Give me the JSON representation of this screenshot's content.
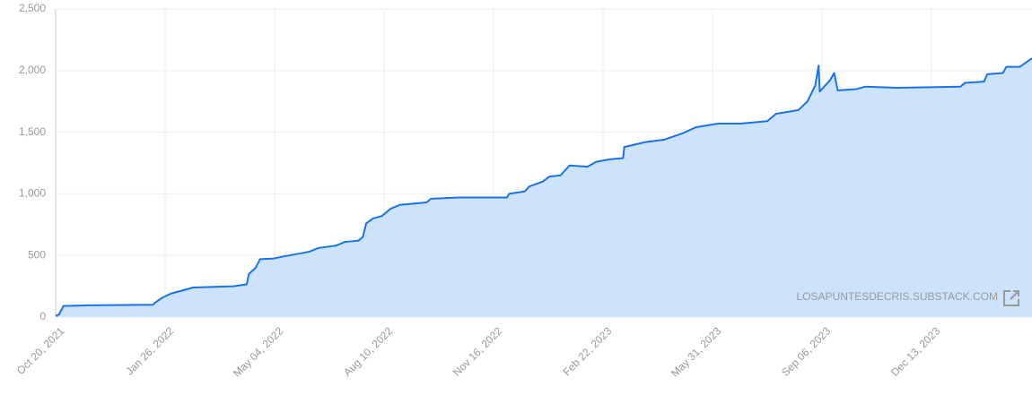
{
  "chart_data": {
    "type": "area",
    "x": [
      "2021-10-20",
      "2021-10-23",
      "2021-10-27",
      "2021-11-19",
      "2022-01-15",
      "2022-01-19",
      "2022-01-24",
      "2022-01-31",
      "2022-02-12",
      "2022-02-20",
      "2022-03-28",
      "2022-04-09",
      "2022-04-11",
      "2022-04-17",
      "2022-04-21",
      "2022-05-03",
      "2022-05-11",
      "2022-05-23",
      "2022-06-04",
      "2022-06-12",
      "2022-06-28",
      "2022-07-06",
      "2022-07-18",
      "2022-07-22",
      "2022-07-25",
      "2022-07-31",
      "2022-08-08",
      "2022-08-16",
      "2022-08-24",
      "2022-09-17",
      "2022-09-21",
      "2022-10-15",
      "2022-11-28",
      "2022-11-30",
      "2022-12-14",
      "2022-12-18",
      "2022-12-30",
      "2023-01-05",
      "2023-01-15",
      "2023-01-23",
      "2023-02-08",
      "2023-02-16",
      "2023-02-28",
      "2023-03-12",
      "2023-03-13",
      "2023-04-01",
      "2023-04-18",
      "2023-05-04",
      "2023-05-16",
      "2023-06-05",
      "2023-06-25",
      "2023-07-19",
      "2023-07-27",
      "2023-08-16",
      "2023-08-24",
      "2023-08-31",
      "2023-09-03",
      "2023-09-04",
      "2023-09-13",
      "2023-09-17",
      "2023-09-20",
      "2023-10-07",
      "2023-10-15",
      "2023-11-12",
      "2024-01-08",
      "2024-01-12",
      "2024-01-29",
      "2024-02-01",
      "2024-02-15",
      "2024-02-18",
      "2024-03-01",
      "2024-03-12"
    ],
    "values": [
      10,
      20,
      90,
      95,
      100,
      130,
      160,
      190,
      220,
      240,
      250,
      265,
      350,
      400,
      470,
      475,
      490,
      510,
      530,
      560,
      580,
      610,
      620,
      650,
      760,
      800,
      820,
      880,
      910,
      930,
      960,
      970,
      970,
      1000,
      1020,
      1060,
      1100,
      1140,
      1150,
      1230,
      1220,
      1260,
      1280,
      1290,
      1380,
      1420,
      1440,
      1490,
      1540,
      1570,
      1570,
      1590,
      1650,
      1680,
      1750,
      1880,
      2040,
      1830,
      1920,
      1980,
      1840,
      1850,
      1870,
      1860,
      1870,
      1900,
      1910,
      1970,
      1980,
      2030,
      2030,
      2100
    ],
    "color": "#1a73e8",
    "area_color": "#cce3fb",
    "xlim": [
      "2021-10-20",
      "2024-03-12"
    ],
    "xticks": [
      {
        "value": "2021-10-20",
        "label": "Oct 20, 2021"
      },
      {
        "value": "2022-01-26",
        "label": "Jan 26, 2022"
      },
      {
        "value": "2022-05-04",
        "label": "May 04, 2022"
      },
      {
        "value": "2022-08-10",
        "label": "Aug 10, 2022"
      },
      {
        "value": "2022-11-16",
        "label": "Nov 16, 2022"
      },
      {
        "value": "2023-02-22",
        "label": "Feb 22, 2023"
      },
      {
        "value": "2023-05-31",
        "label": "May 31, 2023"
      },
      {
        "value": "2023-09-06",
        "label": "Sep 06, 2023"
      },
      {
        "value": "2023-12-13",
        "label": "Dec 13, 2023"
      }
    ],
    "ylim": [
      0,
      2500
    ],
    "yticks": [
      0,
      500,
      {
        "value": 1000,
        "label": "1,000"
      },
      {
        "value": 1500,
        "label": "1,500"
      },
      {
        "value": 2000,
        "label": "2,000"
      },
      {
        "value": 2500,
        "label": "2,500"
      }
    ],
    "grid": true,
    "watermark": "LOSAPUNTESDECRIS.SUBSTACK.COM"
  }
}
